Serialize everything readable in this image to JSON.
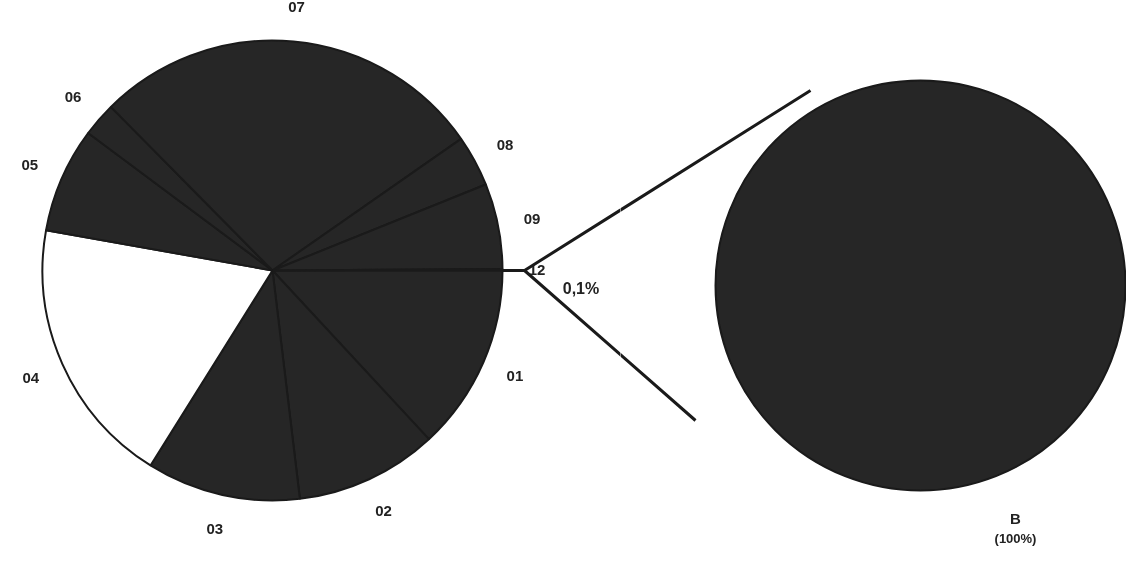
{
  "chart_data": [
    {
      "type": "pie",
      "categories": [
        "01",
        "02",
        "03",
        "04",
        "05",
        "06",
        "07",
        "08",
        "09",
        "12"
      ],
      "values": [
        13.1,
        10.0,
        10.8,
        18.9,
        7.4,
        2.4,
        27.7,
        3.6,
        6.0,
        0.1
      ],
      "colors": [
        "#262626",
        "#262626",
        "#262626",
        "#ffffff",
        "#262626",
        "#262626",
        "#262626",
        "#262626",
        "#262626",
        "#262626"
      ],
      "value_labels": [
        null,
        null,
        null,
        null,
        null,
        null,
        null,
        null,
        null,
        "0,1%"
      ]
    },
    {
      "type": "pie",
      "categories": [
        "B"
      ],
      "values": [
        100
      ],
      "colors": [
        "#262626"
      ],
      "value_labels": [
        "(100%)"
      ]
    }
  ]
}
